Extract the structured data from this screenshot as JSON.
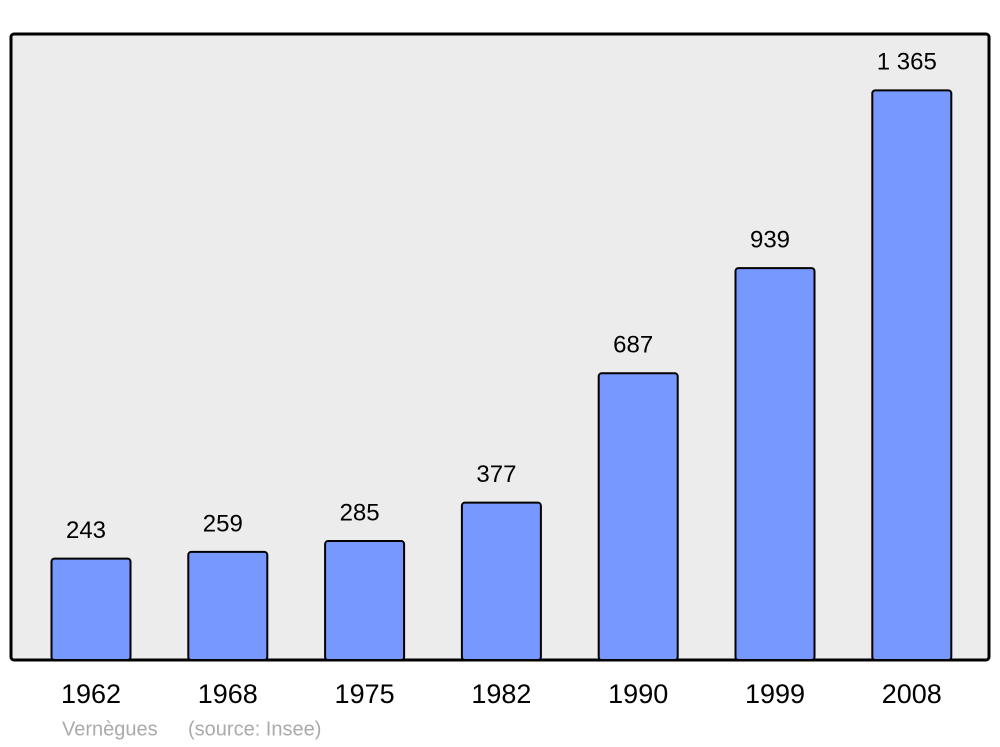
{
  "chart_data": {
    "type": "bar",
    "categories": [
      "1962",
      "1968",
      "1975",
      "1982",
      "1990",
      "1999",
      "2008"
    ],
    "values": [
      243,
      259,
      285,
      377,
      687,
      939,
      1365
    ],
    "value_labels": [
      "243",
      "259",
      "285",
      "377",
      "687",
      "939",
      "1 365"
    ],
    "color": "#7799ff",
    "ylim": [
      0,
      1500
    ],
    "place": "Vernègues",
    "source": "(source: Insee)"
  }
}
